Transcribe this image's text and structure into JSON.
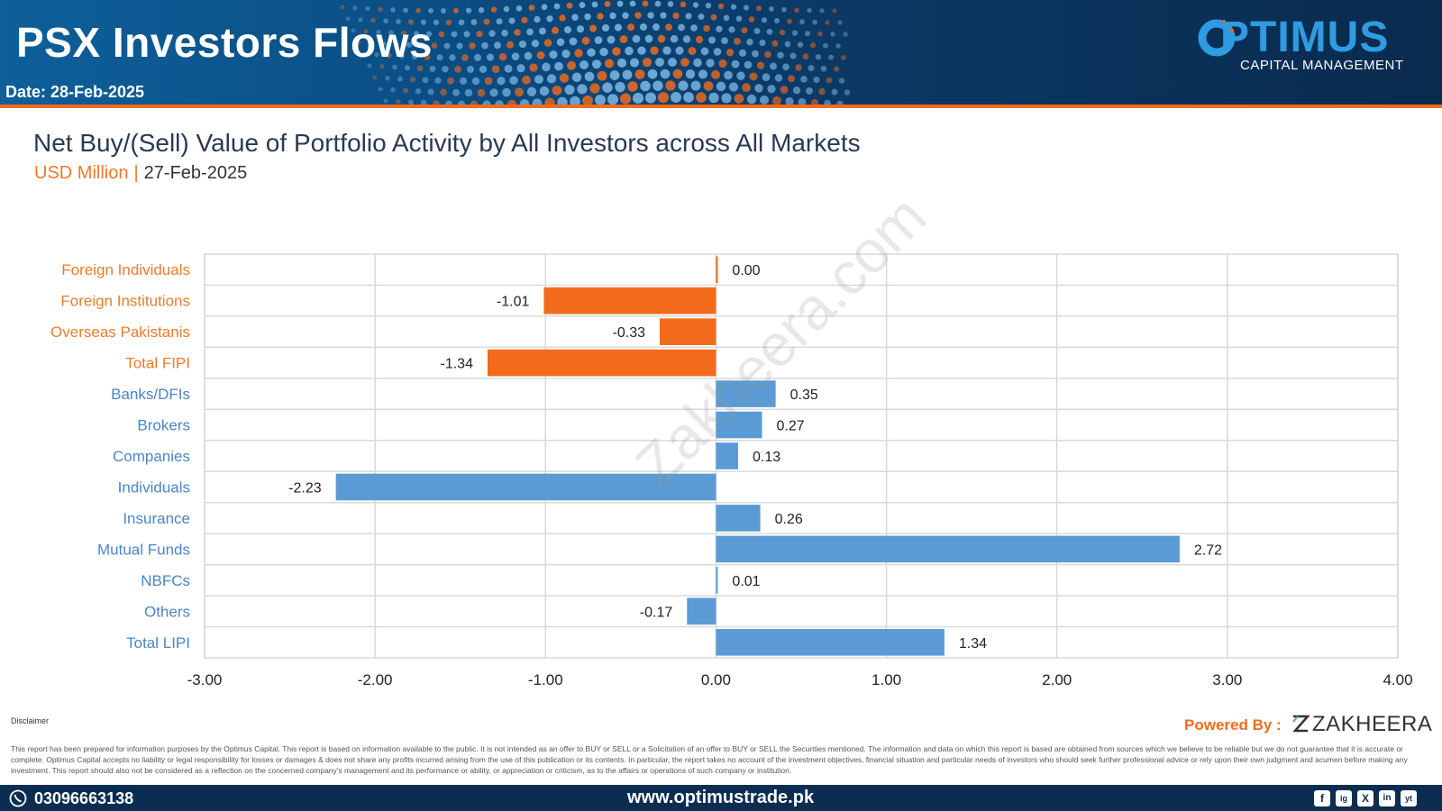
{
  "header": {
    "title": "PSX Investors Flows",
    "date": "Date: 28-Feb-2025",
    "brand": "PTIMUS",
    "brand_sub": "CAPITAL MANAGEMENT"
  },
  "chart_data": {
    "type": "bar",
    "orientation": "horizontal",
    "title": "Net Buy/(Sell) Value of Portfolio Activity by All Investors across All Markets",
    "unit": "USD Million",
    "as_of": "27-Feb-2025",
    "categories": [
      "Foreign Individuals",
      "Foreign Institutions",
      "Overseas Pakistanis",
      "Total FIPI",
      "Banks/DFIs",
      "Brokers",
      "Companies",
      "Individuals",
      "Insurance",
      "Mutual Funds",
      "NBFCs",
      "Others",
      "Total LIPI"
    ],
    "values": [
      0.0,
      -1.01,
      -0.33,
      -1.34,
      0.35,
      0.27,
      0.13,
      -2.23,
      0.26,
      2.72,
      0.01,
      -0.17,
      1.34
    ],
    "value_labels": [
      "0.00",
      "-1.01",
      "-0.33",
      "-1.34",
      "0.35",
      "0.27",
      "0.13",
      "-2.23",
      "0.26",
      "2.72",
      "0.01",
      "-0.17",
      "1.34"
    ],
    "groups": [
      "foreign",
      "foreign",
      "foreign",
      "foreign",
      "local",
      "local",
      "local",
      "local",
      "local",
      "local",
      "local",
      "local",
      "local"
    ],
    "xlim": [
      -3,
      4
    ],
    "xticks": [
      -3,
      -2,
      -1,
      0,
      1,
      2,
      3,
      4
    ],
    "xtick_labels": [
      "-3.00",
      "-2.00",
      "-1.00",
      "0.00",
      "1.00",
      "2.00",
      "3.00",
      "4.00"
    ],
    "grid": true,
    "colors": {
      "foreign": "#f26b1d",
      "local": "#5b9bd5",
      "foreign_label": "#f07a2a",
      "local_label": "#4a86c5"
    }
  },
  "watermark": "Zakheera.com",
  "footer": {
    "disclaimer_title": "Disclaimer",
    "disclaimer_text": "This report has been prepared for information purposes by the Optimus Capital. This report is based on information available to the public. It is not intended as an offer to BUY or SELL or a Solicitation of an offer to BUY or SELL the Securities mentioned. The information and data on which this report is based are obtained from sources which we believe to be reliable but we do not guarantee that it is accurate or complete. Optimus Capital accepts no liability or legal responsibility for losses or damages & does not share any profits incurred arising from the use of this publication or its contents. In particular, the report takes no account of the investment objectives, financial situation and particular needs of investors who should seek further professional advice or rely upon their own judgment and acumen before making any investment. This report should also not be considered as a reflection on the concerned company's management and its performance or ability, or appreciation or criticism, as to the affairs or operations of such company or institution.",
    "powered_by": "Powered By :",
    "powered_brand": "ZAKHEERA",
    "phone": "03096663138",
    "website": "www.optimustrade.pk",
    "social": [
      "f",
      "ig",
      "X",
      "in",
      "yt"
    ]
  }
}
